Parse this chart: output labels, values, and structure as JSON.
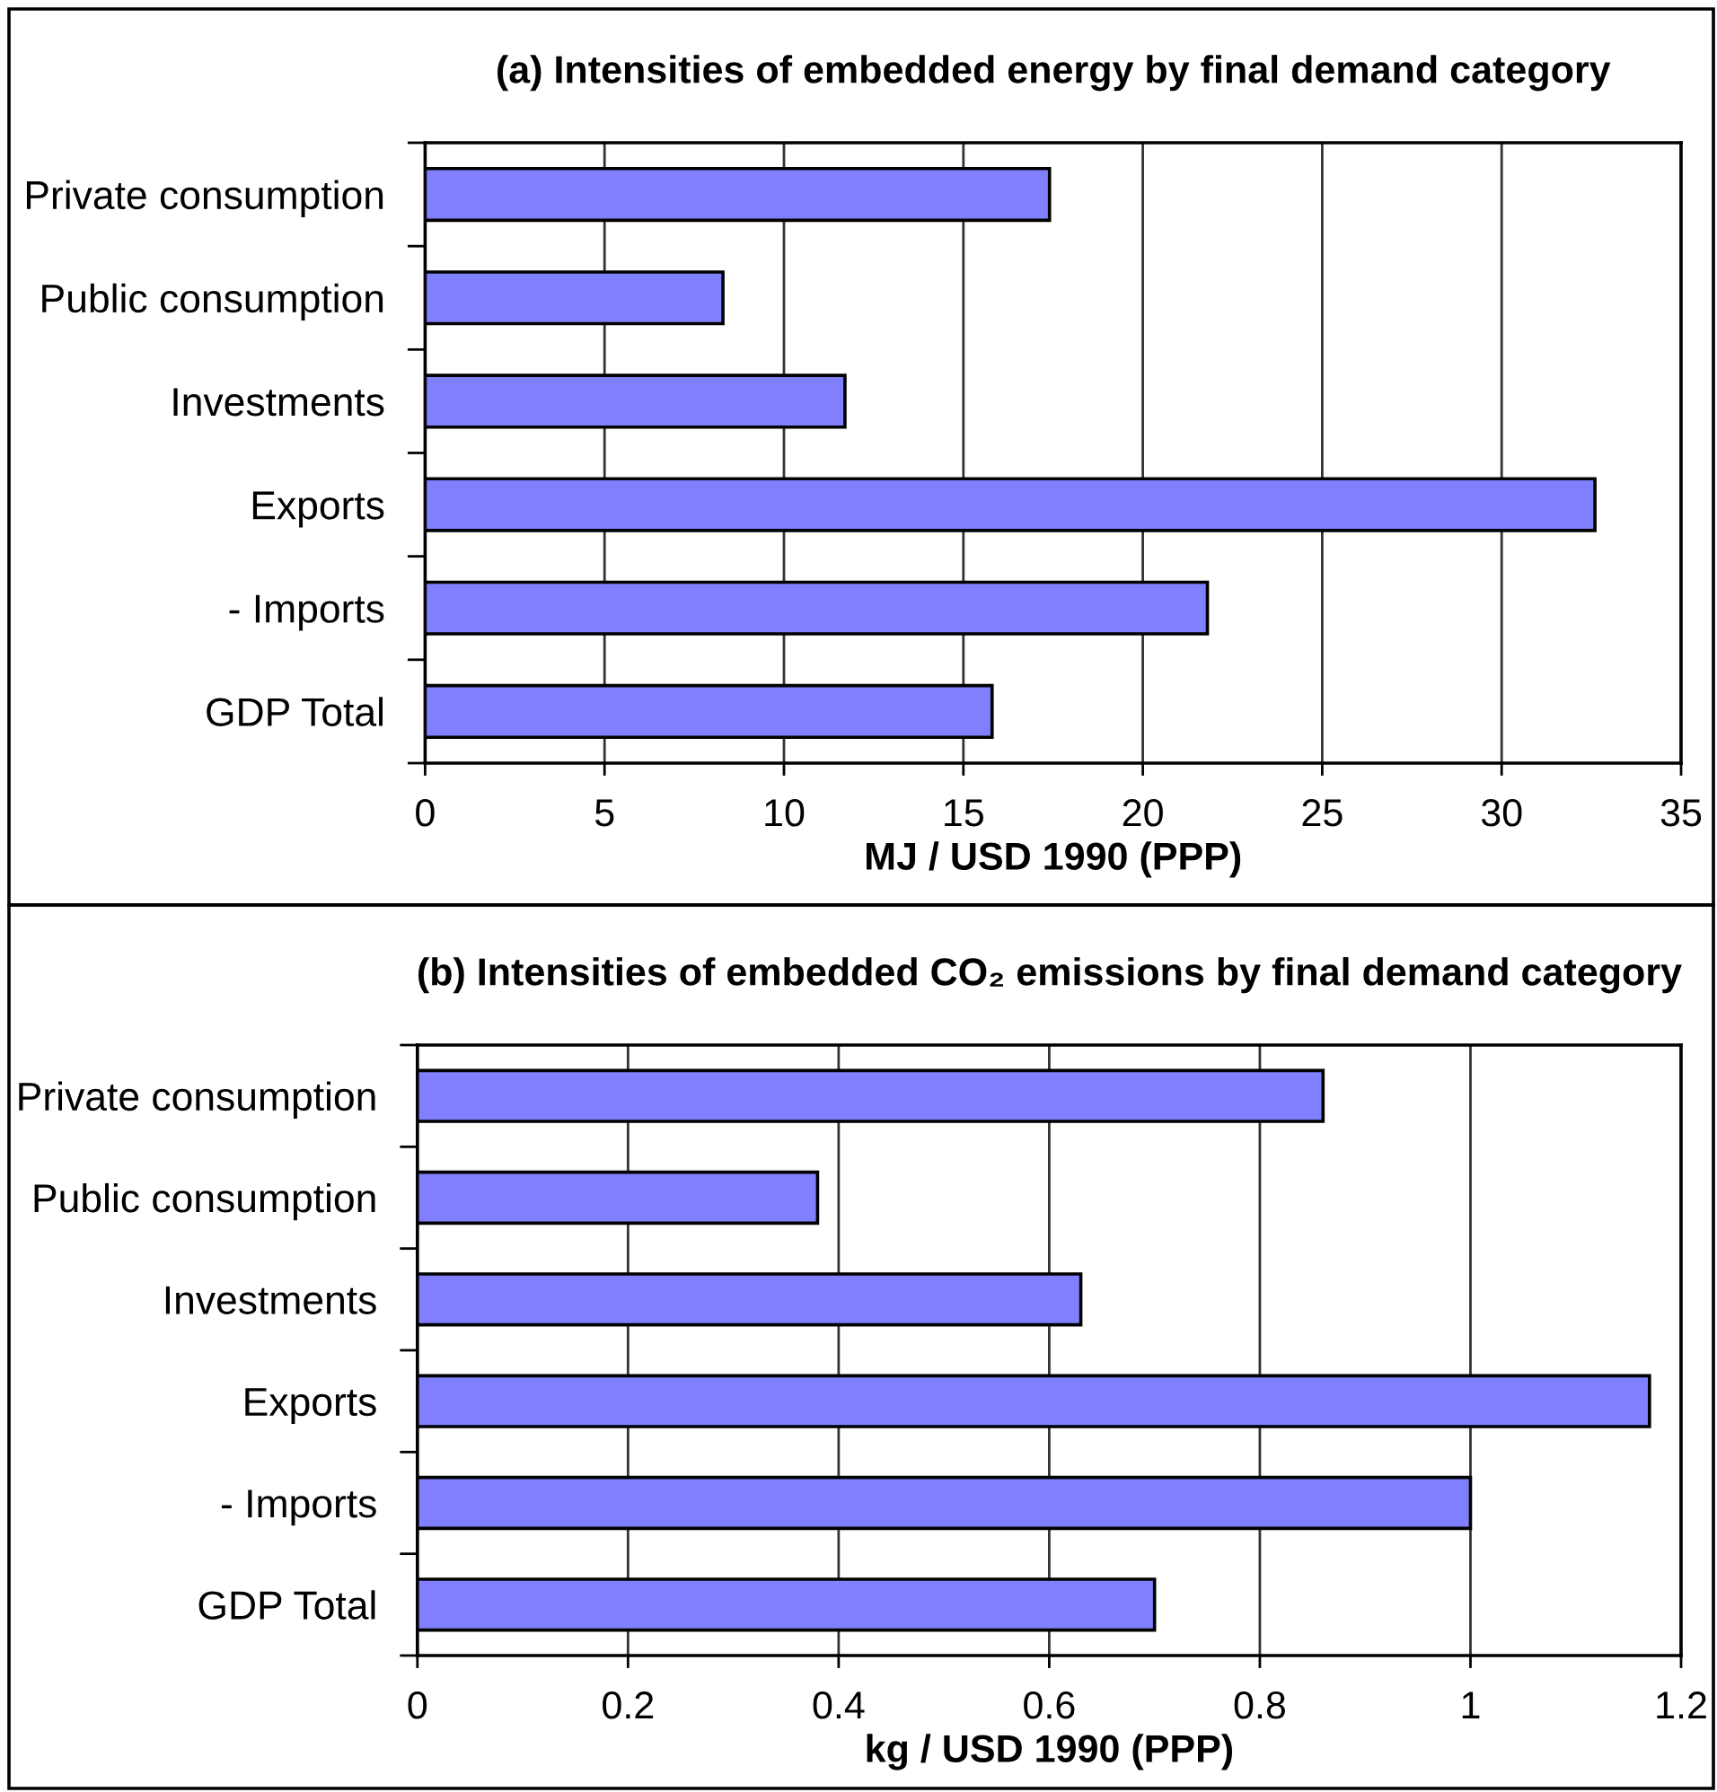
{
  "chart_data": [
    {
      "type": "bar",
      "orientation": "horizontal",
      "title": "(a) Intensities of embedded energy by final demand category",
      "xlabel": "MJ / USD 1990 (PPP)",
      "categories": [
        "Private consumption",
        "Public consumption",
        "Investments",
        "Exports",
        "- Imports",
        "GDP Total"
      ],
      "values": [
        17.4,
        8.3,
        11.7,
        32.6,
        21.8,
        15.8
      ],
      "color": "#8080ff",
      "xlim": [
        0,
        35
      ],
      "xticks": [
        0,
        5,
        10,
        15,
        20,
        25,
        30,
        35
      ],
      "grid": "x"
    },
    {
      "type": "bar",
      "orientation": "horizontal",
      "title": "(b) Intensities of embedded CO₂ emissions by final demand category",
      "xlabel": "kg / USD 1990 (PPP)",
      "categories": [
        "Private consumption",
        "Public consumption",
        "Investments",
        "Exports",
        "- Imports",
        "GDP Total"
      ],
      "values": [
        0.86,
        0.38,
        0.63,
        1.17,
        1.0,
        0.7
      ],
      "color": "#8080ff",
      "xlim": [
        0,
        1.2
      ],
      "xticks": [
        0,
        0.2,
        0.4,
        0.6,
        0.8,
        1,
        1.2
      ],
      "grid": "x"
    }
  ]
}
